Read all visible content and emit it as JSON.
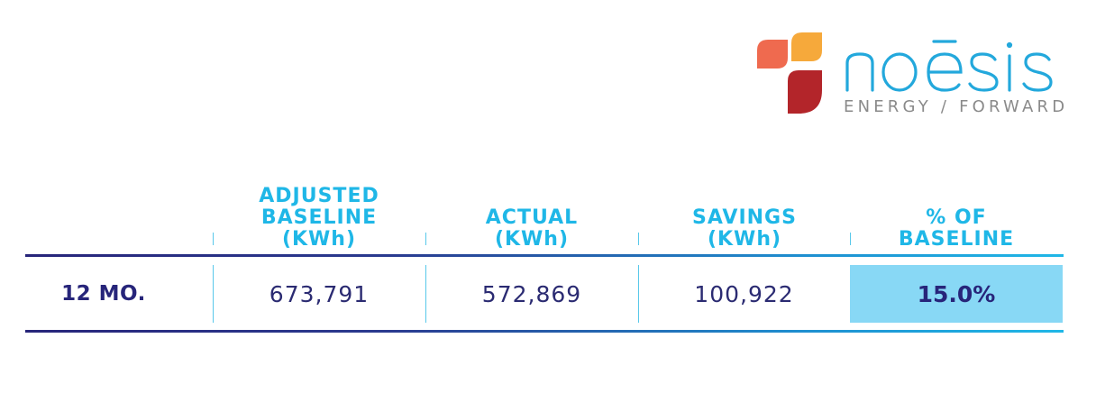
{
  "brand": {
    "name": "noēsis",
    "tagline": "ENERGY / FORWARD",
    "colors": {
      "orange_light": "#f6a93b",
      "coral": "#ef6a4f",
      "red_dark": "#b3252a",
      "wordmark": "#23a8dc",
      "tagline": "#8a8a8a"
    }
  },
  "table": {
    "columns": [
      {
        "lines": [
          "ADJUSTED",
          "BASELINE",
          "(KWh)"
        ]
      },
      {
        "lines": [
          "ACTUAL",
          "(KWh)"
        ]
      },
      {
        "lines": [
          "SAVINGS",
          "(KWh)"
        ]
      },
      {
        "lines": [
          "% OF",
          "BASELINE"
        ]
      }
    ],
    "row": {
      "label": "12 MO.",
      "adjusted_baseline": "673,791",
      "actual": "572,869",
      "savings": "100,922",
      "percent_of_baseline": "15.0%"
    },
    "colors": {
      "header_text": "#1fb7e7",
      "body_text": "#2b2b72",
      "highlight_fill": "#88d8f5",
      "rule_start": "#27257a",
      "rule_end": "#1fb7e7"
    }
  }
}
